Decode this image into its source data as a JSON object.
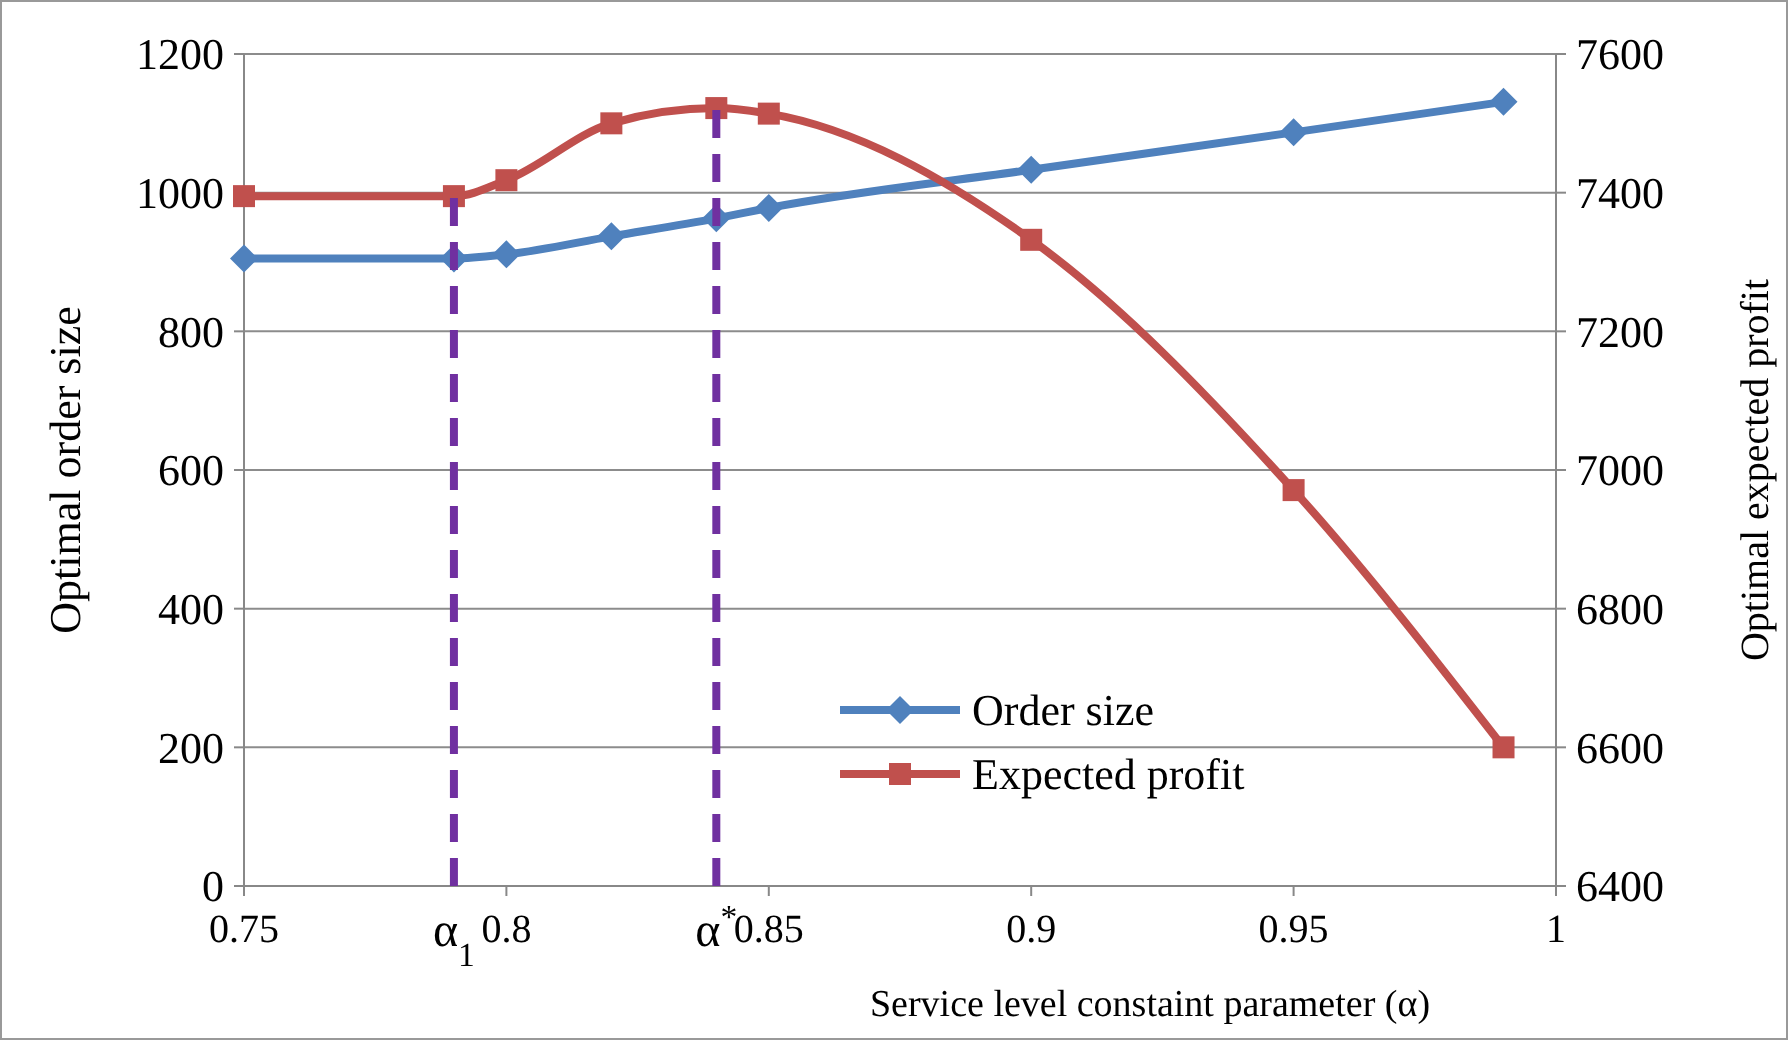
{
  "chart_data": {
    "type": "line",
    "xlabel": "Service level constaint parameter (α)",
    "ylabel": "Optimal order size",
    "y2label": "Optimal expected profit",
    "x": [
      0.75,
      0.79,
      0.8,
      0.82,
      0.84,
      0.85,
      0.9,
      0.95,
      0.99
    ],
    "series": [
      {
        "name": "Order size",
        "color": "#4f81bd",
        "marker": "diamond",
        "values": [
          905,
          905,
          911,
          937,
          963,
          978,
          1033,
          1087,
          1131
        ]
      },
      {
        "name": "Expected profit",
        "color": "#c0504d",
        "marker": "square",
        "axis": "y2",
        "values": [
          7395,
          7395,
          7418,
          7500,
          7522,
          7514,
          7332,
          6971,
          6600
        ]
      }
    ],
    "xlim": [
      0.75,
      1
    ],
    "xticks": [
      0.75,
      0.8,
      0.85,
      0.9,
      0.95,
      1
    ],
    "ylim": [
      0,
      1200
    ],
    "yticks": [
      0,
      200,
      400,
      600,
      800,
      1000,
      1200
    ],
    "y2lim": [
      6400,
      7600
    ],
    "y2ticks": [
      6400,
      6600,
      6800,
      7000,
      7200,
      7400,
      7600
    ],
    "ref_lines": [
      {
        "axis": "x",
        "value": 0.79,
        "label": "α$_{1}$",
        "color": "#7030a0",
        "line_style": "dashed"
      },
      {
        "axis": "x",
        "value": 0.84,
        "label": "α$^{*}$",
        "color": "#7030a0",
        "line_style": "dashed"
      }
    ],
    "grid": "y",
    "legend": "bottom right"
  }
}
